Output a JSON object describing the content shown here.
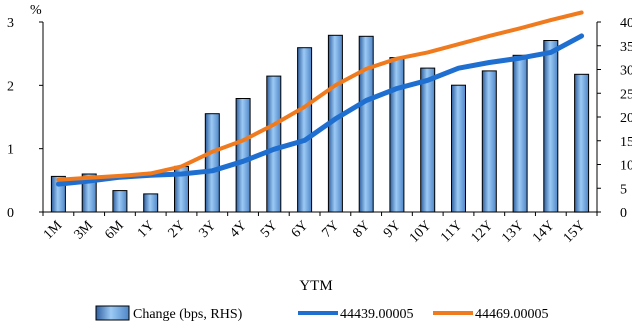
{
  "chart_data": {
    "type": "bar",
    "title": "",
    "xlabel": "YTM",
    "ylabel_left": "%",
    "ylabel_right": "",
    "categories": [
      "1M",
      "3M",
      "6M",
      "1Y",
      "2Y",
      "3Y",
      "4Y",
      "5Y",
      "6Y",
      "7Y",
      "8Y",
      "9Y",
      "10Y",
      "11Y",
      "12Y",
      "13Y",
      "14Y",
      "15Y"
    ],
    "left_axis": {
      "ylim": [
        0,
        3
      ],
      "ticks": [
        "0",
        "1",
        "2",
        "3"
      ]
    },
    "right_axis": {
      "ylim": [
        0,
        40
      ],
      "ticks": [
        "0",
        "5",
        "10",
        "15",
        "20",
        "25",
        "30",
        "35",
        "40"
      ]
    },
    "grid": false,
    "legend_position": "bottom",
    "series": [
      {
        "name": "Change (bps, RHS)",
        "type": "bar",
        "axis": "right",
        "color": "#6fa8e6",
        "values": [
          7.5,
          8.0,
          4.5,
          3.8,
          9.6,
          20.7,
          23.9,
          28.6,
          34.6,
          37.2,
          37.0,
          32.5,
          30.3,
          26.7,
          29.7,
          33.0,
          36.1,
          29.0
        ]
      },
      {
        "name": "44439.00005",
        "type": "line",
        "axis": "left",
        "color": "#1f6fd1",
        "values": [
          0.44,
          0.49,
          0.55,
          0.58,
          0.6,
          0.65,
          0.8,
          0.99,
          1.13,
          1.47,
          1.76,
          1.95,
          2.08,
          2.27,
          2.36,
          2.43,
          2.52,
          2.78
        ]
      },
      {
        "name": "44469.00005",
        "type": "line",
        "axis": "left",
        "color": "#f07a1e",
        "values": [
          0.51,
          0.54,
          0.57,
          0.61,
          0.72,
          0.95,
          1.13,
          1.38,
          1.66,
          2.0,
          2.26,
          2.42,
          2.52,
          2.65,
          2.78,
          2.9,
          3.03,
          3.15
        ]
      }
    ]
  }
}
